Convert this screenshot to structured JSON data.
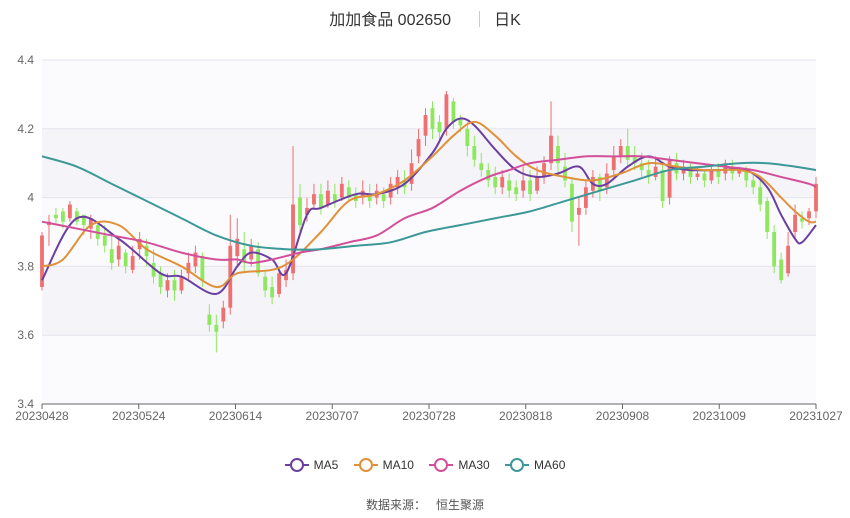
{
  "header": {
    "stock_name": "加加食品 002650",
    "period": "日K"
  },
  "source": {
    "label": "数据来源：",
    "value": "恒生聚源"
  },
  "colors": {
    "up": "#ef7070",
    "down": "#8ee85e",
    "MA5": "#6b3fa0",
    "MA10": "#e0913a",
    "MA30": "#d34f9a",
    "MA60": "#3d9898"
  },
  "chart_data": {
    "type": "candlestick",
    "y_ticks": [
      "3.4",
      "3.6",
      "3.8",
      "4",
      "4.2",
      "4.4"
    ],
    "ylim": [
      3.4,
      4.4
    ],
    "x_ticks": [
      "20230428",
      "20230524",
      "20230614",
      "20230707",
      "20230728",
      "20230818",
      "20230908",
      "20231009",
      "20231027"
    ],
    "grid": "horizontal",
    "legend_position": "bottom",
    "legend": [
      "MA5",
      "MA10",
      "MA30",
      "MA60"
    ],
    "candles": [
      [
        3.74,
        3.89,
        3.73,
        3.9
      ],
      [
        3.92,
        3.93,
        3.86,
        3.95
      ],
      [
        3.95,
        3.94,
        3.92,
        3.97
      ],
      [
        3.96,
        3.93,
        3.91,
        3.97
      ],
      [
        3.94,
        3.98,
        3.93,
        3.99
      ],
      [
        3.96,
        3.93,
        3.92,
        3.97
      ],
      [
        3.95,
        3.92,
        3.89,
        3.95
      ],
      [
        3.91,
        3.94,
        3.88,
        3.95
      ],
      [
        3.92,
        3.88,
        3.86,
        3.93
      ],
      [
        3.89,
        3.86,
        3.84,
        3.92
      ],
      [
        3.85,
        3.81,
        3.79,
        3.89
      ],
      [
        3.82,
        3.86,
        3.8,
        3.88
      ],
      [
        3.84,
        3.8,
        3.78,
        3.85
      ],
      [
        3.79,
        3.83,
        3.78,
        3.86
      ],
      [
        3.85,
        3.88,
        3.82,
        3.9
      ],
      [
        3.86,
        3.83,
        3.8,
        3.88
      ],
      [
        3.81,
        3.77,
        3.75,
        3.85
      ],
      [
        3.78,
        3.74,
        3.72,
        3.8
      ],
      [
        3.73,
        3.76,
        3.71,
        3.78
      ],
      [
        3.76,
        3.73,
        3.7,
        3.79
      ],
      [
        3.73,
        3.77,
        3.72,
        3.79
      ],
      [
        3.78,
        3.81,
        3.76,
        3.84
      ],
      [
        3.8,
        3.84,
        3.78,
        3.86
      ],
      [
        3.83,
        3.76,
        3.74,
        3.84
      ],
      [
        3.66,
        3.63,
        3.61,
        3.69
      ],
      [
        3.63,
        3.61,
        3.55,
        3.66
      ],
      [
        3.64,
        3.68,
        3.62,
        3.7
      ],
      [
        3.68,
        3.86,
        3.66,
        3.95
      ],
      [
        3.83,
        3.88,
        3.8,
        3.94
      ],
      [
        3.85,
        3.81,
        3.78,
        3.9
      ],
      [
        3.82,
        3.86,
        3.8,
        3.88
      ],
      [
        3.85,
        3.78,
        3.77,
        3.87
      ],
      [
        3.77,
        3.73,
        3.71,
        3.79
      ],
      [
        3.74,
        3.71,
        3.69,
        3.77
      ],
      [
        3.72,
        3.78,
        3.71,
        3.8
      ],
      [
        3.76,
        3.79,
        3.74,
        3.82
      ],
      [
        3.78,
        3.98,
        3.76,
        4.15
      ],
      [
        4.0,
        3.92,
        3.9,
        4.04
      ],
      [
        3.95,
        3.97,
        3.93,
        4.0
      ],
      [
        3.98,
        4.01,
        3.97,
        4.04
      ],
      [
        4.01,
        3.97,
        3.95,
        4.04
      ],
      [
        3.98,
        4.02,
        3.97,
        4.05
      ],
      [
        4.01,
        3.99,
        3.97,
        4.04
      ],
      [
        4.0,
        4.04,
        3.99,
        4.06
      ],
      [
        4.03,
        4.0,
        3.99,
        4.05
      ],
      [
        4.01,
        3.99,
        3.97,
        4.03
      ],
      [
        4.0,
        4.02,
        3.98,
        4.05
      ],
      [
        4.01,
        3.99,
        3.97,
        4.04
      ],
      [
        4.0,
        4.02,
        3.98,
        4.04
      ],
      [
        4.01,
        3.99,
        3.97,
        4.03
      ],
      [
        4.0,
        4.04,
        3.98,
        4.06
      ],
      [
        4.03,
        4.06,
        4.01,
        4.08
      ],
      [
        4.05,
        4.03,
        4.01,
        4.08
      ],
      [
        4.04,
        4.1,
        4.02,
        4.14
      ],
      [
        4.12,
        4.17,
        4.1,
        4.2
      ],
      [
        4.18,
        4.24,
        4.15,
        4.26
      ],
      [
        4.26,
        4.2,
        4.17,
        4.28
      ],
      [
        4.22,
        4.19,
        4.16,
        4.24
      ],
      [
        4.2,
        4.3,
        4.18,
        4.31
      ],
      [
        4.28,
        4.22,
        4.2,
        4.29
      ],
      [
        4.23,
        4.21,
        4.19,
        4.24
      ],
      [
        4.2,
        4.15,
        4.12,
        4.22
      ],
      [
        4.15,
        4.11,
        4.09,
        4.18
      ],
      [
        4.1,
        4.08,
        4.06,
        4.13
      ],
      [
        4.08,
        4.05,
        4.03,
        4.1
      ],
      [
        4.06,
        4.03,
        4.01,
        4.09
      ],
      [
        4.03,
        4.06,
        4.01,
        4.08
      ],
      [
        4.05,
        4.02,
        4.0,
        4.07
      ],
      [
        4.03,
        4.01,
        3.99,
        4.05
      ],
      [
        4.02,
        4.05,
        4.0,
        4.09
      ],
      [
        4.05,
        4.01,
        3.99,
        4.08
      ],
      [
        4.02,
        4.06,
        4.01,
        4.09
      ],
      [
        4.06,
        4.1,
        4.04,
        4.12
      ],
      [
        4.1,
        4.18,
        4.08,
        4.28
      ],
      [
        4.15,
        4.1,
        4.07,
        4.18
      ],
      [
        4.09,
        4.05,
        4.03,
        4.13
      ],
      [
        4.04,
        3.93,
        3.9,
        4.06
      ],
      [
        3.95,
        3.97,
        3.86,
        4.0
      ],
      [
        3.97,
        4.03,
        3.95,
        4.05
      ],
      [
        4.02,
        4.06,
        4.0,
        4.08
      ],
      [
        4.06,
        4.02,
        3.99,
        4.07
      ],
      [
        4.03,
        4.07,
        4.01,
        4.1
      ],
      [
        4.08,
        4.12,
        4.06,
        4.15
      ],
      [
        4.12,
        4.15,
        4.1,
        4.17
      ],
      [
        4.15,
        4.11,
        4.09,
        4.2
      ],
      [
        4.12,
        4.1,
        4.08,
        4.15
      ],
      [
        4.1,
        4.08,
        4.06,
        4.13
      ],
      [
        4.08,
        4.06,
        4.04,
        4.11
      ],
      [
        4.06,
        4.09,
        4.05,
        4.12
      ],
      [
        4.08,
        3.99,
        3.97,
        4.1
      ],
      [
        4.0,
        4.11,
        3.98,
        4.12
      ],
      [
        4.1,
        4.07,
        4.05,
        4.13
      ],
      [
        4.07,
        4.09,
        4.05,
        4.11
      ],
      [
        4.09,
        4.06,
        4.04,
        4.1
      ],
      [
        4.06,
        4.07,
        4.05,
        4.09
      ],
      [
        4.07,
        4.05,
        4.03,
        4.08
      ],
      [
        4.05,
        4.08,
        4.04,
        4.09
      ],
      [
        4.08,
        4.06,
        4.04,
        4.1
      ],
      [
        4.07,
        4.1,
        4.05,
        4.11
      ],
      [
        4.09,
        4.07,
        4.05,
        4.11
      ],
      [
        4.07,
        4.08,
        4.06,
        4.09
      ],
      [
        4.08,
        4.05,
        4.03,
        4.09
      ],
      [
        4.05,
        4.03,
        4.01,
        4.07
      ],
      [
        4.03,
        3.98,
        3.96,
        4.05
      ],
      [
        3.99,
        3.9,
        3.88,
        4.0
      ],
      [
        3.9,
        3.8,
        3.78,
        3.92
      ],
      [
        3.82,
        3.76,
        3.75,
        3.84
      ],
      [
        3.78,
        3.86,
        3.77,
        3.9
      ],
      [
        3.9,
        3.95,
        3.88,
        3.98
      ],
      [
        3.94,
        3.93,
        3.91,
        3.96
      ],
      [
        3.94,
        3.96,
        3.92,
        3.97
      ],
      [
        3.96,
        4.04,
        3.94,
        4.06
      ]
    ],
    "series": [
      {
        "name": "MA5",
        "values": [
          [
            0,
            3.76
          ],
          [
            5,
            3.94
          ],
          [
            11,
            3.88
          ],
          [
            17,
            3.78
          ],
          [
            20,
            3.77
          ],
          [
            25,
            3.72
          ],
          [
            28,
            3.8
          ],
          [
            30,
            3.84
          ],
          [
            33,
            3.82
          ],
          [
            35,
            3.78
          ],
          [
            38,
            3.95
          ],
          [
            40,
            3.97
          ],
          [
            45,
            4.01
          ],
          [
            48,
            4.01
          ],
          [
            52,
            4.04
          ],
          [
            56,
            4.13
          ],
          [
            58,
            4.2
          ],
          [
            60,
            4.23
          ],
          [
            62,
            4.21
          ],
          [
            65,
            4.14
          ],
          [
            68,
            4.08
          ],
          [
            71,
            4.06
          ],
          [
            74,
            4.07
          ],
          [
            77,
            4.09
          ],
          [
            79,
            4.04
          ],
          [
            81,
            4.04
          ],
          [
            84,
            4.09
          ],
          [
            87,
            4.12
          ],
          [
            90,
            4.09
          ],
          [
            93,
            4.08
          ],
          [
            97,
            4.08
          ],
          [
            101,
            4.08
          ],
          [
            104,
            4.03
          ],
          [
            106,
            3.95
          ],
          [
            108,
            3.88
          ],
          [
            109,
            3.87
          ],
          [
            111,
            3.92
          ]
        ]
      },
      {
        "name": "MA10",
        "values": [
          [
            0,
            3.8
          ],
          [
            3,
            3.82
          ],
          [
            7,
            3.92
          ],
          [
            11,
            3.92
          ],
          [
            15,
            3.85
          ],
          [
            20,
            3.8
          ],
          [
            25,
            3.74
          ],
          [
            28,
            3.78
          ],
          [
            33,
            3.79
          ],
          [
            36,
            3.82
          ],
          [
            40,
            3.9
          ],
          [
            44,
            3.99
          ],
          [
            48,
            4.01
          ],
          [
            52,
            4.05
          ],
          [
            56,
            4.12
          ],
          [
            59,
            4.18
          ],
          [
            62,
            4.22
          ],
          [
            65,
            4.18
          ],
          [
            68,
            4.12
          ],
          [
            71,
            4.08
          ],
          [
            75,
            4.06
          ],
          [
            79,
            4.05
          ],
          [
            83,
            4.07
          ],
          [
            87,
            4.1
          ],
          [
            91,
            4.09
          ],
          [
            95,
            4.08
          ],
          [
            100,
            4.08
          ],
          [
            103,
            4.06
          ],
          [
            106,
            4.0
          ],
          [
            108,
            3.96
          ],
          [
            110,
            3.93
          ],
          [
            111,
            3.93
          ]
        ]
      },
      {
        "name": "MA30",
        "values": [
          [
            0,
            3.93
          ],
          [
            5,
            3.91
          ],
          [
            10,
            3.89
          ],
          [
            15,
            3.87
          ],
          [
            20,
            3.84
          ],
          [
            25,
            3.82
          ],
          [
            28,
            3.82
          ],
          [
            30,
            3.81
          ],
          [
            33,
            3.82
          ],
          [
            37,
            3.84
          ],
          [
            40,
            3.85
          ],
          [
            44,
            3.87
          ],
          [
            48,
            3.89
          ],
          [
            52,
            3.94
          ],
          [
            56,
            3.97
          ],
          [
            60,
            4.02
          ],
          [
            64,
            4.06
          ],
          [
            67,
            4.08
          ],
          [
            70,
            4.1
          ],
          [
            74,
            4.11
          ],
          [
            78,
            4.12
          ],
          [
            82,
            4.12
          ],
          [
            86,
            4.12
          ],
          [
            90,
            4.11
          ],
          [
            94,
            4.1
          ],
          [
            98,
            4.09
          ],
          [
            102,
            4.08
          ],
          [
            106,
            4.06
          ],
          [
            110,
            4.04
          ],
          [
            111,
            4.03
          ]
        ]
      },
      {
        "name": "MA60",
        "values": [
          [
            0,
            4.12
          ],
          [
            5,
            4.09
          ],
          [
            10,
            4.04
          ],
          [
            15,
            3.99
          ],
          [
            20,
            3.94
          ],
          [
            25,
            3.89
          ],
          [
            30,
            3.86
          ],
          [
            35,
            3.85
          ],
          [
            40,
            3.85
          ],
          [
            45,
            3.86
          ],
          [
            50,
            3.87
          ],
          [
            55,
            3.9
          ],
          [
            60,
            3.92
          ],
          [
            65,
            3.94
          ],
          [
            70,
            3.96
          ],
          [
            75,
            3.99
          ],
          [
            80,
            4.02
          ],
          [
            85,
            4.05
          ],
          [
            90,
            4.08
          ],
          [
            95,
            4.09
          ],
          [
            100,
            4.1
          ],
          [
            104,
            4.1
          ],
          [
            108,
            4.09
          ],
          [
            111,
            4.08
          ]
        ]
      }
    ]
  }
}
